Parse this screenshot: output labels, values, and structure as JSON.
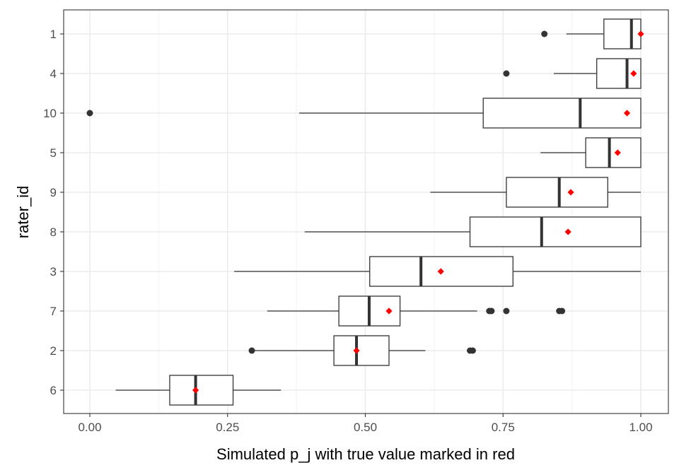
{
  "chart_data": {
    "type": "boxplot",
    "orientation": "horizontal",
    "xlabel": "Simulated p_j with true value marked in red",
    "ylabel": "rater_id",
    "xlim": [
      -0.05,
      1.05
    ],
    "x_ticks": [
      0.0,
      0.25,
      0.5,
      0.75,
      1.0
    ],
    "x_tick_labels": [
      "0.00",
      "0.25",
      "0.50",
      "0.75",
      "1.00"
    ],
    "grid": true,
    "colors": {
      "box": "#333333",
      "outlier": "#333333",
      "true_value": "#ff0000",
      "grid": "#ebebeb"
    },
    "categories": [
      "1",
      "4",
      "10",
      "5",
      "9",
      "8",
      "3",
      "7",
      "2",
      "6"
    ],
    "boxes": [
      {
        "id": "1",
        "whisker_low": 0.865,
        "q1": 0.933,
        "median": 0.983,
        "q3": 1.0,
        "whisker_high": 1.0,
        "outliers": [
          0.825
        ],
        "true_value": 1.0
      },
      {
        "id": "4",
        "whisker_low": 0.842,
        "q1": 0.92,
        "median": 0.975,
        "q3": 1.0,
        "whisker_high": 1.0,
        "outliers": [
          0.756
        ],
        "true_value": 0.987
      },
      {
        "id": "10",
        "whisker_low": 0.38,
        "q1": 0.714,
        "median": 0.89,
        "q3": 1.0,
        "whisker_high": 1.0,
        "outliers": [
          0.0
        ],
        "true_value": 0.975
      },
      {
        "id": "5",
        "whisker_low": 0.818,
        "q1": 0.9,
        "median": 0.943,
        "q3": 1.0,
        "whisker_high": 1.0,
        "outliers": [],
        "true_value": 0.958
      },
      {
        "id": "9",
        "whisker_low": 0.618,
        "q1": 0.756,
        "median": 0.852,
        "q3": 0.94,
        "whisker_high": 1.0,
        "outliers": [],
        "true_value": 0.873
      },
      {
        "id": "8",
        "whisker_low": 0.39,
        "q1": 0.69,
        "median": 0.82,
        "q3": 1.0,
        "whisker_high": 1.0,
        "outliers": [],
        "true_value": 0.868
      },
      {
        "id": "3",
        "whisker_low": 0.262,
        "q1": 0.508,
        "median": 0.601,
        "q3": 0.768,
        "whisker_high": 1.0,
        "outliers": [],
        "true_value": 0.637
      },
      {
        "id": "7",
        "whisker_low": 0.322,
        "q1": 0.452,
        "median": 0.507,
        "q3": 0.563,
        "whisker_high": 0.703,
        "outliers": [
          0.725,
          0.729,
          0.756,
          0.852,
          0.857
        ],
        "true_value": 0.543
      },
      {
        "id": "2",
        "whisker_low": 0.294,
        "q1": 0.443,
        "median": 0.484,
        "q3": 0.543,
        "whisker_high": 0.609,
        "outliers": [
          0.294,
          0.69,
          0.695
        ],
        "true_value": 0.484
      },
      {
        "id": "6",
        "whisker_low": 0.047,
        "q1": 0.145,
        "median": 0.192,
        "q3": 0.26,
        "whisker_high": 0.347,
        "outliers": [],
        "true_value": 0.192
      }
    ]
  }
}
